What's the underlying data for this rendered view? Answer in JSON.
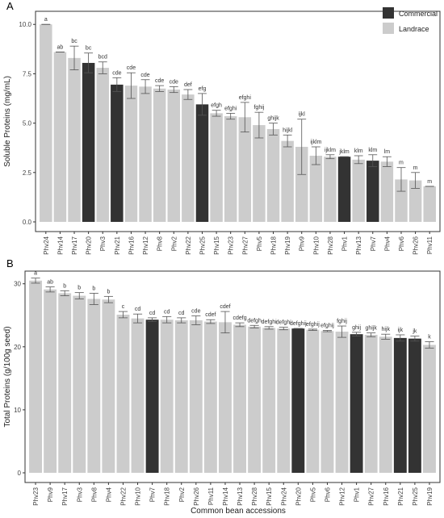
{
  "legend": {
    "entries": [
      {
        "label": "Commercial",
        "color": "#333333"
      },
      {
        "label": "Landrace",
        "color": "#cccccc"
      }
    ],
    "placement": "top-right"
  },
  "colors": {
    "commercial": "#333333",
    "landrace": "#cccccc",
    "error_bar": "#555555",
    "axis": "#333333"
  },
  "shared_xlabel": "Common bean accessions",
  "chart_data": [
    {
      "type": "bar",
      "panel": "A",
      "ylabel": "Soluble Proteins (mg/mL)",
      "ylim": [
        0,
        10.5
      ],
      "yticks": [
        "0.0",
        "2.5",
        "5.0",
        "7.5",
        "10.0"
      ],
      "ytick_values": [
        0,
        2.5,
        5,
        7.5,
        10
      ],
      "grid": false,
      "categories": [
        "Phv24",
        "Phv14",
        "Phv17",
        "Phv20",
        "Phv3",
        "Phv21",
        "Phv16",
        "Phv12",
        "Phv8",
        "Phv2",
        "Phv22",
        "Phv25",
        "Phv15",
        "Phv23",
        "Phv27",
        "Phv5",
        "Phv18",
        "Phv19",
        "Phv9",
        "Phv10",
        "Phv28",
        "Phv1",
        "Phv13",
        "Phv7",
        "Phv4",
        "Phv6",
        "Phv26",
        "Phv11"
      ],
      "values": [
        10.0,
        8.6,
        8.3,
        8.05,
        7.8,
        6.95,
        6.9,
        6.85,
        6.75,
        6.7,
        6.45,
        5.95,
        5.5,
        5.35,
        5.3,
        4.9,
        4.7,
        4.1,
        3.8,
        3.35,
        3.3,
        3.3,
        3.15,
        3.1,
        3.05,
        2.15,
        2.1,
        1.8
      ],
      "errors": [
        0.0,
        0.0,
        0.6,
        0.5,
        0.3,
        0.35,
        0.65,
        0.35,
        0.15,
        0.15,
        0.25,
        0.55,
        0.15,
        0.15,
        0.75,
        0.65,
        0.3,
        0.3,
        1.4,
        0.45,
        0.1,
        0.0,
        0.2,
        0.3,
        0.25,
        0.6,
        0.4,
        0.0
      ],
      "groups": [
        "L",
        "L",
        "L",
        "C",
        "L",
        "C",
        "L",
        "L",
        "L",
        "L",
        "L",
        "C",
        "L",
        "L",
        "L",
        "L",
        "L",
        "L",
        "L",
        "L",
        "L",
        "C",
        "L",
        "C",
        "L",
        "L",
        "L",
        "L"
      ],
      "annotations": [
        "a",
        "ab",
        "bc",
        "bc",
        "bcd",
        "cde",
        "cde",
        "cde",
        "cde",
        "cde",
        "def",
        "efg",
        "efgh",
        "efghi",
        "efghi",
        "fghij",
        "ghijk",
        "hijkl",
        "ijkl",
        "ijklm",
        "ijklm",
        "jklm",
        "klm",
        "klm",
        "lm",
        "m",
        "m",
        "m"
      ]
    },
    {
      "type": "bar",
      "panel": "B",
      "ylabel": "Total Proteins (g/100g seed)",
      "ylim": [
        0,
        31.5
      ],
      "yticks": [
        "0",
        "10",
        "20",
        "30"
      ],
      "ytick_values": [
        0,
        10,
        20,
        30
      ],
      "grid": false,
      "categories": [
        "Phv23",
        "Phv9",
        "Phv17",
        "Phv3",
        "Phv8",
        "Phv4",
        "Phv22",
        "Phv10",
        "Phv7",
        "Phv18",
        "Phv2",
        "Phv26",
        "Phv11",
        "Phv14",
        "Phv13",
        "Phv28",
        "Phv15",
        "Phv24",
        "Phv20",
        "Phv5",
        "Phv6",
        "Phv12",
        "Phv1",
        "Phv27",
        "Phv16",
        "Phv21",
        "Phv25",
        "Phv19"
      ],
      "values": [
        30.5,
        29.1,
        28.5,
        28.1,
        27.6,
        27.5,
        25.1,
        24.5,
        24.3,
        24.3,
        24.2,
        24.2,
        24.0,
        23.9,
        23.5,
        23.2,
        23.0,
        22.9,
        22.9,
        22.7,
        22.5,
        22.4,
        22.0,
        21.9,
        21.6,
        21.4,
        21.3,
        20.3
      ],
      "errors": [
        0.4,
        0.4,
        0.4,
        0.5,
        0.9,
        0.5,
        0.5,
        0.7,
        0.3,
        0.5,
        0.4,
        0.7,
        0.3,
        1.7,
        0.3,
        0.2,
        0.2,
        0.2,
        0.0,
        0.1,
        0.1,
        0.9,
        0.3,
        0.3,
        0.4,
        0.5,
        0.4,
        0.5
      ],
      "groups": [
        "L",
        "L",
        "L",
        "L",
        "L",
        "L",
        "L",
        "L",
        "C",
        "L",
        "L",
        "L",
        "L",
        "L",
        "L",
        "L",
        "L",
        "L",
        "C",
        "L",
        "L",
        "L",
        "C",
        "L",
        "L",
        "C",
        "C",
        "L"
      ],
      "annotations": [
        "a",
        "ab",
        "b",
        "b",
        "b",
        "b",
        "c",
        "cd",
        "cd",
        "cd",
        "cd",
        "cde",
        "cdef",
        "cdef",
        "cdefg",
        "defgh",
        "defghi",
        "defghi",
        "defghij",
        "efghij",
        "efghij",
        "fghij",
        "ghij",
        "ghijk",
        "hijk",
        "ijk",
        "jk",
        "k"
      ]
    }
  ],
  "panels": [
    {
      "label": "A"
    },
    {
      "label": "B"
    }
  ]
}
